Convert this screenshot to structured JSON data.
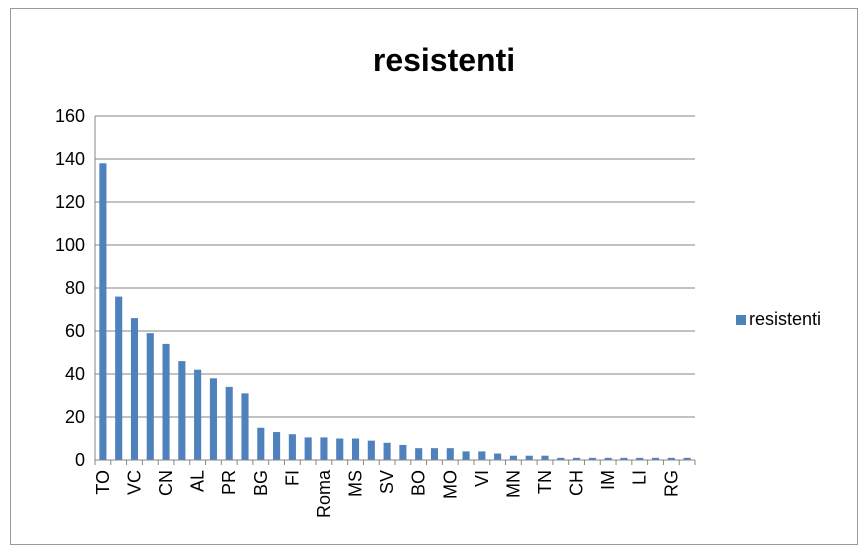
{
  "chart_data": {
    "type": "bar",
    "title": "resistenti",
    "xlabel": "",
    "ylabel": "",
    "ylim": [
      0,
      160
    ],
    "yticks": [
      0,
      20,
      40,
      60,
      80,
      100,
      120,
      140,
      160
    ],
    "grid": true,
    "legend_position": "right",
    "categories": [
      "TO",
      "",
      "VC",
      "",
      "CN",
      "",
      "AL",
      "",
      "PR",
      "",
      "BG",
      "",
      "FI",
      "",
      "Roma",
      "",
      "MS",
      "",
      "SV",
      "",
      "BO",
      "",
      "MO",
      "",
      "VI",
      "",
      "MN",
      "",
      "TN",
      "",
      "CH",
      "",
      "IM",
      "",
      "LI",
      "",
      "RG",
      ""
    ],
    "series": [
      {
        "name": "resistenti",
        "color": "#4F81BD",
        "values": [
          138,
          76,
          66,
          59,
          54,
          46,
          42,
          38,
          34,
          31,
          15,
          13,
          12,
          10.5,
          10.5,
          10,
          10,
          9,
          8,
          7,
          5.5,
          5.5,
          5.5,
          4,
          4,
          3,
          2,
          2,
          2,
          1,
          1,
          1,
          1,
          1,
          1,
          1,
          1,
          1
        ]
      }
    ]
  }
}
